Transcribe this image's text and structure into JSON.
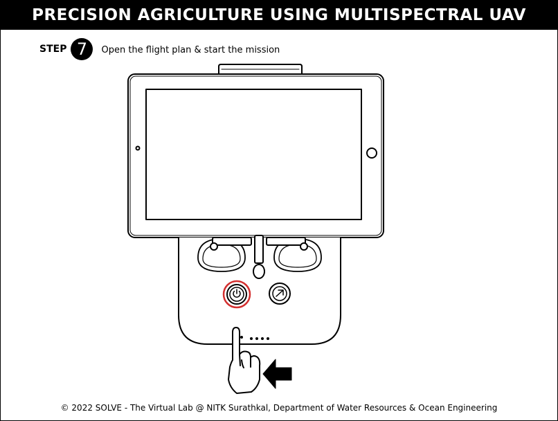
{
  "header": {
    "title": "PRECISION AGRICULTURE USING MULTISPECTRAL UAV"
  },
  "step": {
    "word": "STEP",
    "number": "7",
    "instruction": "Open the flight plan & start the mission"
  },
  "illustration": {
    "icons": [
      "tablet",
      "remote-controller",
      "power-button",
      "return-home-button",
      "pointing-hand",
      "arrow"
    ],
    "highlight_color": "#d32f2f"
  },
  "footer": {
    "text": "© 2022 SOLVE - The Virtual Lab @ NITK Surathkal, Department of Water Resources & Ocean Engineering"
  }
}
